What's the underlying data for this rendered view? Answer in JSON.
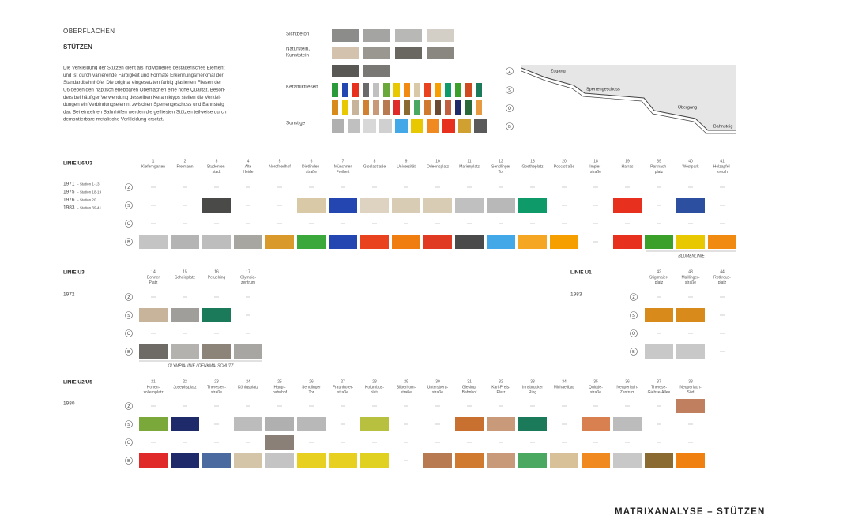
{
  "header": {
    "section": "OBERFLÄCHEN",
    "title": "STÜTZEN",
    "paragraph": [
      "Die Verkleidung der Stützen dient als individuelles gestalterisches Element",
      "und ist durch variierende Farbigkeit und Formate Erkennungsmerkmal der",
      "Standardbahnhöfe. Die original eingesetzten farbig glasierten Fliesen der",
      "U6 geben den haptisch erlebbaren Oberflächen eine hohe Qualität. Beson-",
      "ders bei häufiger Verwendung desselben Keramiktyps stellen die Verklei-",
      "dungen ein Verbindungselemnt zwischen Sperrengeschoss und Bahnsteig",
      "dar. Bei einzelnen Bahnhöfen werden die gefliesten Stützen teilweise durch",
      "demontierbare metalische Verkleidung ersetzt."
    ]
  },
  "materials": [
    [
      "Sichtbeton"
    ],
    [
      "Naturstein,",
      "Kunststein"
    ],
    [
      "Keramikfliesen"
    ],
    [
      "Sonstige"
    ]
  ],
  "levels": [
    "Z",
    "S",
    "Ü",
    "B"
  ],
  "section_labels": [
    "Zugang",
    "Sperrengeschoss",
    "Übergang",
    "Bahnsteig"
  ],
  "groups": [
    {
      "title": "LINIE U6/U3",
      "years": [
        {
          "year": "1971",
          "note": "– Station 1-13"
        },
        {
          "year": "1975",
          "note": "– Station 18-19"
        },
        {
          "year": "1976",
          "note": "– Station 20"
        },
        {
          "year": "1983",
          "note": "– Station 39-41"
        }
      ],
      "annotation": "BLUMENLINIE",
      "stations": [
        {
          "num": "1",
          "name": [
            "Kieferngarten"
          ],
          "cells": [
            null,
            null,
            null,
            "#c4c4c4"
          ]
        },
        {
          "num": "2",
          "name": [
            "Freimann"
          ],
          "cells": [
            null,
            null,
            null,
            "#b4b4b4"
          ]
        },
        {
          "num": "3",
          "name": [
            "Studenten-",
            "stadt"
          ],
          "cells": [
            null,
            "#4a4a48",
            null,
            "#bdbdbd"
          ]
        },
        {
          "num": "4",
          "name": [
            "Alte",
            "Heide"
          ],
          "cells": [
            null,
            null,
            null,
            "#a8a6a0"
          ]
        },
        {
          "num": "5",
          "name": [
            "Nordfriedhof"
          ],
          "cells": [
            null,
            null,
            null,
            "#d99a2b"
          ]
        },
        {
          "num": "6",
          "name": [
            "Dietlinden-",
            "straße"
          ],
          "cells": [
            null,
            "#d9c9a6",
            null,
            "#3aa83a"
          ]
        },
        {
          "num": "7",
          "name": [
            "Münchner",
            "Freiheit"
          ],
          "cells": [
            null,
            "#2346b0",
            null,
            "#2346b0"
          ]
        },
        {
          "num": "8",
          "name": [
            "Giselastraße"
          ],
          "cells": [
            null,
            "#ddd3c0",
            null,
            "#e8421e"
          ]
        },
        {
          "num": "9",
          "name": [
            "Universität"
          ],
          "cells": [
            null,
            "#d8ccb4",
            null,
            "#f07d10"
          ]
        },
        {
          "num": "10",
          "name": [
            "Odeonsplatz"
          ],
          "cells": [
            null,
            "#d8ccb4",
            null,
            "#e03a22"
          ]
        },
        {
          "num": "11",
          "name": [
            "Marienplatz"
          ],
          "cells": [
            null,
            "#c0c0c0",
            null,
            "#4a4a4a"
          ]
        },
        {
          "num": "12",
          "name": [
            "Sendlinger",
            "Tor"
          ],
          "cells": [
            null,
            "#b8b8b8",
            null,
            "#43a8e8"
          ]
        },
        {
          "num": "13",
          "name": [
            "Goetheplatz"
          ],
          "cells": [
            null,
            "#0f9a6a",
            null,
            "#f5a623"
          ]
        },
        {
          "num": "20",
          "name": [
            "Poccistraße"
          ],
          "cells": [
            null,
            null,
            null,
            "#f5a000"
          ]
        },
        {
          "num": "18",
          "name": [
            "Impler-",
            "straße"
          ],
          "cells": [
            null,
            null,
            null,
            null
          ]
        },
        {
          "num": "19",
          "name": [
            "Harras"
          ],
          "cells": [
            null,
            "#e8301e",
            null,
            "#e8301e"
          ]
        },
        {
          "num": "39",
          "name": [
            "Partnach-",
            "platz"
          ],
          "cells": [
            null,
            null,
            null,
            "#3aa02a"
          ]
        },
        {
          "num": "40",
          "name": [
            "Westpark"
          ],
          "cells": [
            null,
            "#2c4fa0",
            null,
            "#e8c800"
          ]
        },
        {
          "num": "41",
          "name": [
            "Holzapfel-",
            "kreuth"
          ],
          "cells": [
            null,
            null,
            null,
            "#f08a10"
          ]
        }
      ]
    },
    {
      "title": "LINIE U3",
      "years": [
        {
          "year": "1972",
          "note": ""
        }
      ],
      "annotation": "OLYMPIALINIE / DENKMALSCHUTZ",
      "stations": [
        {
          "num": "14",
          "name": [
            "Bonner",
            "Platz"
          ],
          "cells": [
            null,
            "#c8b49a",
            null,
            "#6e6a66"
          ]
        },
        {
          "num": "15",
          "name": [
            "Scheidplatz"
          ],
          "cells": [
            null,
            "#a09e9a",
            null,
            "#b4b2ae"
          ]
        },
        {
          "num": "16",
          "name": [
            "Petuelring"
          ],
          "cells": [
            null,
            "#1a7a5a",
            null,
            "#8c8478"
          ]
        },
        {
          "num": "17",
          "name": [
            "Olympia-",
            "zentrum"
          ],
          "cells": [
            null,
            null,
            null,
            "#a8a6a2"
          ]
        }
      ]
    },
    {
      "title": "LINIE U1",
      "years": [
        {
          "year": "1983",
          "note": ""
        }
      ],
      "stations": [
        {
          "num": "42",
          "name": [
            "Stiglmaier-",
            "platz"
          ],
          "cells": [
            null,
            "#d88a1a",
            null,
            "#c8c8c8"
          ]
        },
        {
          "num": "43",
          "name": [
            "Maillinger-",
            "straße"
          ],
          "cells": [
            null,
            "#d88a1a",
            null,
            "#c8c8c8"
          ]
        },
        {
          "num": "44",
          "name": [
            "Rotkreuz-",
            "platz"
          ],
          "cells": [
            null,
            null,
            null,
            null
          ]
        }
      ]
    },
    {
      "title": "LINIE U2/U5",
      "years": [
        {
          "year": "1980",
          "note": ""
        }
      ],
      "stations": [
        {
          "num": "21",
          "name": [
            "Hohen-",
            "zollernplatz"
          ],
          "cells": [
            null,
            "#7aa83a",
            null,
            "#e02a2a"
          ]
        },
        {
          "num": "22",
          "name": [
            "Josephsplatz"
          ],
          "cells": [
            null,
            "#1e2a6a",
            null,
            "#1e2a6a"
          ]
        },
        {
          "num": "23",
          "name": [
            "Theresien-",
            "straße"
          ],
          "cells": [
            null,
            null,
            null,
            "#4a6aa0"
          ]
        },
        {
          "num": "24",
          "name": [
            "Königsplatz"
          ],
          "cells": [
            null,
            "#bcbcbc",
            null,
            "#d4c4a8"
          ]
        },
        {
          "num": "25",
          "name": [
            "Haupt-",
            "bahnhof"
          ],
          "cells": [
            null,
            "#b0b0b0",
            "#8a8078",
            "#c4c4c4"
          ]
        },
        {
          "num": "26",
          "name": [
            "Sendlinger",
            "Tor"
          ],
          "cells": [
            null,
            "#b8b8b8",
            null,
            "#e8d020"
          ]
        },
        {
          "num": "27",
          "name": [
            "Fraunhofer-",
            "straße"
          ],
          "cells": [
            null,
            null,
            null,
            "#e8d020"
          ]
        },
        {
          "num": "28",
          "name": [
            "Kolumbus-",
            "platz"
          ],
          "cells": [
            null,
            "#b8c040",
            null,
            "#e0d020"
          ]
        },
        {
          "num": "29",
          "name": [
            "Silberhorn-",
            "straße"
          ],
          "cells": [
            null,
            null,
            null,
            null
          ]
        },
        {
          "num": "30",
          "name": [
            "Untersberg-",
            "straße"
          ],
          "cells": [
            null,
            null,
            null,
            "#b87a50"
          ]
        },
        {
          "num": "31",
          "name": [
            "Giesing-",
            "Bahnhof"
          ],
          "cells": [
            null,
            "#c87030",
            null,
            "#d07a30"
          ]
        },
        {
          "num": "32",
          "name": [
            "Karl-Preis-",
            "Platz"
          ],
          "cells": [
            null,
            "#c89a7a",
            null,
            "#c89a7a"
          ]
        },
        {
          "num": "33",
          "name": [
            "Innsbrucker",
            "Ring"
          ],
          "cells": [
            null,
            "#1a7a5a",
            null,
            "#4aa860"
          ]
        },
        {
          "num": "34",
          "name": [
            "Michaelibad"
          ],
          "cells": [
            null,
            null,
            null,
            "#d8c098"
          ]
        },
        {
          "num": "35",
          "name": [
            "Quidde-",
            "straße"
          ],
          "cells": [
            null,
            "#d88050",
            null,
            "#f08a20"
          ]
        },
        {
          "num": "36",
          "name": [
            "Neuperlach-",
            "Zentrum"
          ],
          "cells": [
            null,
            "#bcbcbc",
            null,
            "#c8c8c8"
          ]
        },
        {
          "num": "37",
          "name": [
            "Therese-",
            "Giehse-Allee"
          ],
          "cells": [
            null,
            null,
            null,
            "#8a6a30"
          ]
        },
        {
          "num": "38",
          "name": [
            "Neuperlach-",
            "Süd"
          ],
          "cells": [
            "#c08060",
            null,
            null,
            "#f08010"
          ]
        }
      ]
    }
  ],
  "footer": "MATRIXANALYSE – STÜTZEN"
}
